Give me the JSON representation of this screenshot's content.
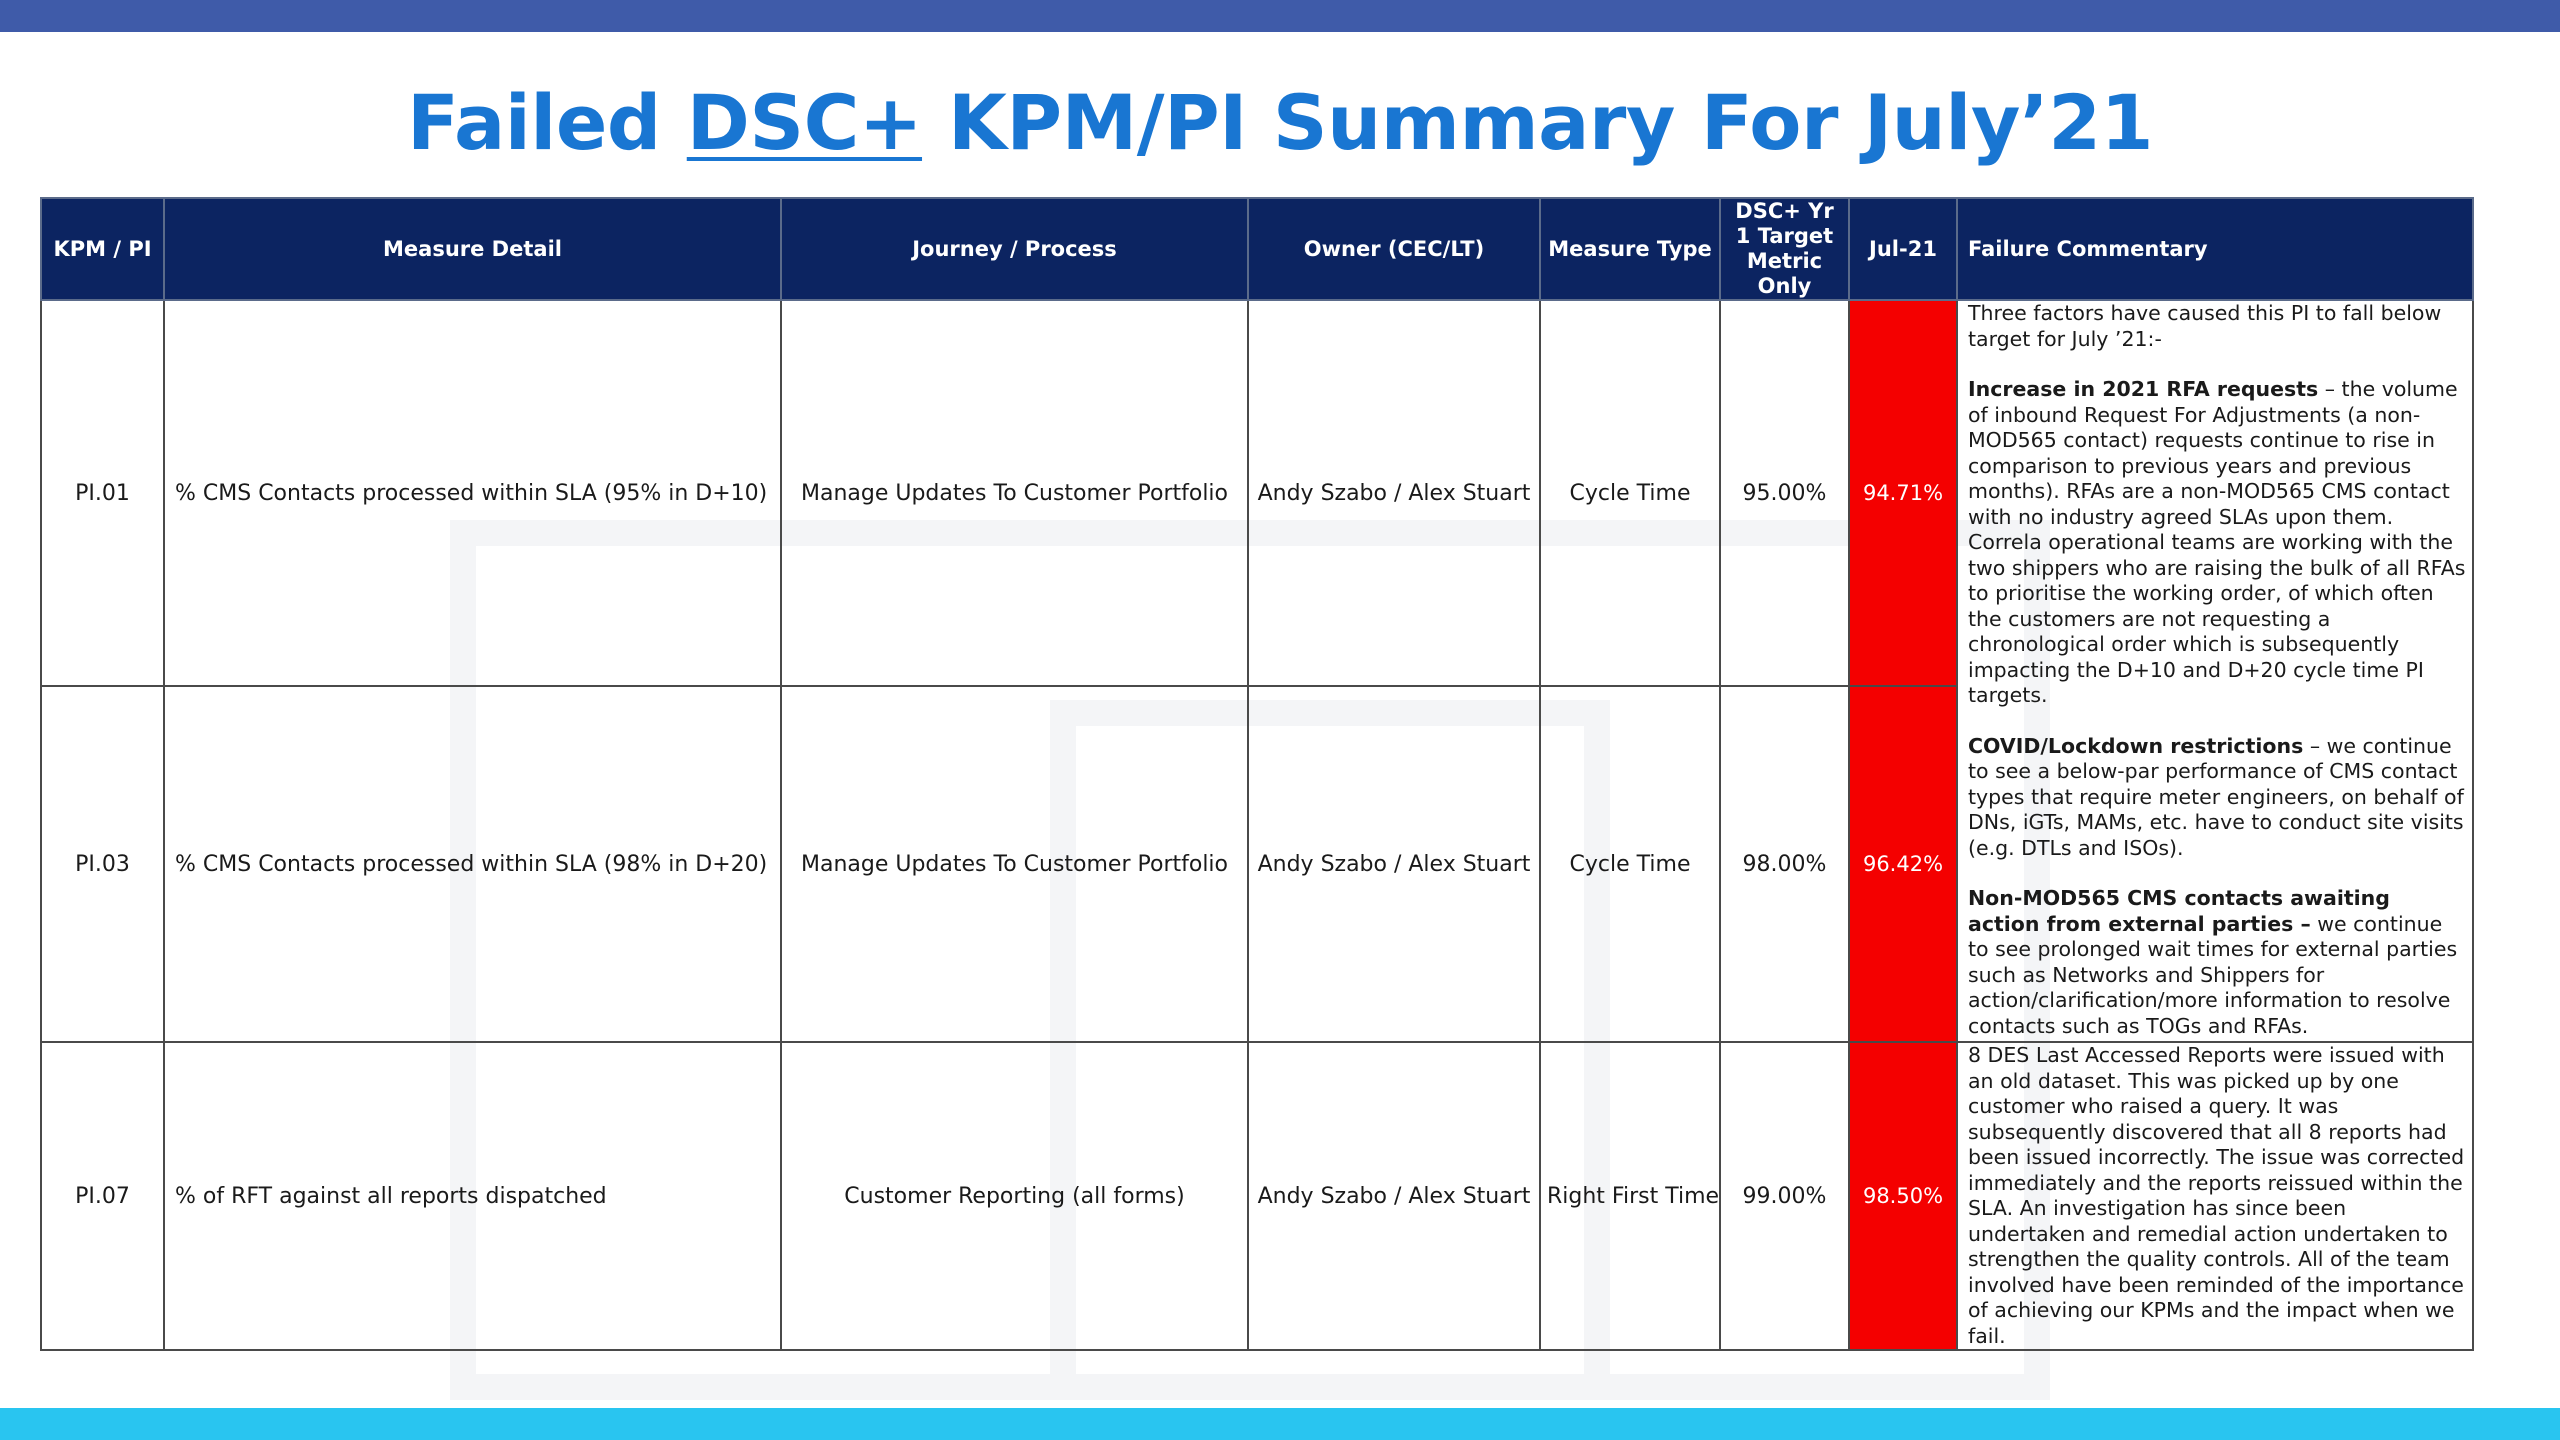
{
  "colors": {
    "top_band": "#3f5ba9",
    "bottom_band": "#29c5f0",
    "title": "#1976d2",
    "header_bg": "#0c2461",
    "fail_red": "#f40000"
  },
  "title": {
    "prefix": "Failed ",
    "underlined": "DSC+",
    "suffix": " KPM/PI Summary For July’21"
  },
  "table": {
    "headers": {
      "kpm": "KPM / PI",
      "detail": "Measure Detail",
      "journey": "Journey / Process",
      "owner": "Owner (CEC/LT)",
      "type": "Measure Type",
      "target": "DSC+ Yr 1 Target Metric Only",
      "month": "Jul-21",
      "commentary": "Failure Commentary"
    },
    "rows": [
      {
        "kpm": "PI.01",
        "detail": "% CMS Contacts processed within SLA (95% in D+10)",
        "journey": "Manage Updates To Customer Portfolio",
        "owner": "Andy Szabo / Alex Stuart",
        "type": "Cycle Time",
        "target": "95.00%",
        "actual": "94.71%"
      },
      {
        "kpm": "PI.03",
        "detail": "% CMS Contacts processed within SLA (98% in D+20)",
        "journey": "Manage Updates To Customer Portfolio",
        "owner": "Andy Szabo / Alex Stuart",
        "type": "Cycle Time",
        "target": "98.00%",
        "actual": "96.42%"
      },
      {
        "kpm": "PI.07",
        "detail": "% of RFT against all reports dispatched",
        "journey": "Customer Reporting (all forms)",
        "owner": "Andy Szabo / Alex Stuart",
        "type": "Right First Time",
        "target": "99.00%",
        "actual": "98.50%"
      }
    ],
    "commentary_1_2": {
      "intro": "Three factors have caused this PI to fall below target for July ’21:-",
      "f1_bold": "Increase in 2021 RFA requests",
      "f1_text": " – the volume of inbound Request For Adjustments (a non-MOD565 contact) requests continue to rise in comparison to previous years and previous months).  RFAs are a non-MOD565 CMS contact with no industry agreed SLAs upon them. Correla operational teams are working with the two shippers who are raising the bulk of all RFAs to prioritise the working order, of which often the customers are not requesting a chronological order which is subsequently impacting the D+10 and D+20 cycle time PI targets.",
      "f2_bold": "COVID/Lockdown restrictions",
      "f2_text": " – we continue to see a below-par performance of CMS contact types that require meter engineers, on behalf of DNs, iGTs, MAMs, etc. have to conduct site visits (e.g. DTLs and ISOs).",
      "f3_bold": "Non-MOD565 CMS contacts awaiting action from external parties –",
      "f3_text": " we continue to see prolonged wait times for external parties such as Networks and Shippers for action/clarification/more information to resolve contacts such as TOGs and RFAs."
    },
    "commentary_3": "8 DES Last Accessed Reports were issued with an old dataset. This was picked up by one customer who raised a query. It was subsequently discovered that all 8 reports had been issued incorrectly. The issue was corrected immediately and the reports reissued within the SLA. An investigation has since been undertaken and remedial action undertaken to strengthen the quality controls. All of the team involved have been reminded of the importance of achieving our KPMs and the impact when we fail."
  }
}
